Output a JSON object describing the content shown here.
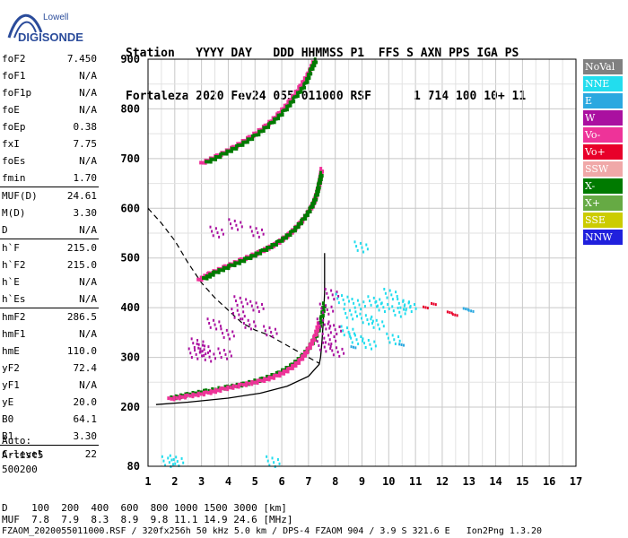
{
  "logo": {
    "line1": "Lowell",
    "line2": "DIGISONDE",
    "accent": "#2b4c9b"
  },
  "header": {
    "labels": [
      "Station",
      "YYYY DAY",
      "DDD HHMMSS P1",
      "FFS S AXN PPS IGA PS"
    ],
    "values": [
      "Fortaleza",
      "2020 Fev24",
      "055 011000 RSF",
      "1 714 100 10+ 11"
    ]
  },
  "params": [
    {
      "name": "foF2",
      "value": "7.450"
    },
    {
      "name": "foF1",
      "value": "N/A"
    },
    {
      "name": "foF1p",
      "value": "N/A"
    },
    {
      "name": "foE",
      "value": "N/A"
    },
    {
      "name": "foEp",
      "value": "0.38"
    },
    {
      "name": "fxI",
      "value": "7.75"
    },
    {
      "name": "foEs",
      "value": "N/A"
    },
    {
      "name": "fmin",
      "value": "1.70"
    },
    {
      "name": "MUF(D)",
      "value": "24.61"
    },
    {
      "name": "M(D)",
      "value": "3.30"
    },
    {
      "name": "D",
      "value": "N/A"
    },
    {
      "name": "h`F",
      "value": "215.0"
    },
    {
      "name": "h`F2",
      "value": "215.0"
    },
    {
      "name": "h`E",
      "value": "N/A"
    },
    {
      "name": "h`Es",
      "value": "N/A"
    },
    {
      "name": "hmF2",
      "value": "286.5"
    },
    {
      "name": "hmF1",
      "value": "N/A"
    },
    {
      "name": "hmE",
      "value": "110.0"
    },
    {
      "name": "yF2",
      "value": "72.4"
    },
    {
      "name": "yF1",
      "value": "N/A"
    },
    {
      "name": "yE",
      "value": "20.0"
    },
    {
      "name": "B0",
      "value": "64.1"
    },
    {
      "name": "B1",
      "value": "3.30"
    },
    {
      "name": "C-level",
      "value": "22"
    }
  ],
  "auto": {
    "label": "Auto:",
    "system": "Artist5",
    "version": "500200"
  },
  "legend": [
    {
      "label": "NoVal",
      "color": "#808080"
    },
    {
      "label": "NNE",
      "color": "#22ddee"
    },
    {
      "label": "E",
      "color": "#2aa8e0"
    },
    {
      "label": "W",
      "color": "#aa10a0"
    },
    {
      "label": "Vo-",
      "color": "#ee3399"
    },
    {
      "label": "Vo+",
      "color": "#e8002a"
    },
    {
      "label": "SSW",
      "color": "#f0a8a8"
    },
    {
      "label": "X-",
      "color": "#007a00"
    },
    {
      "label": "X+",
      "color": "#66aa44"
    },
    {
      "label": "SSE",
      "color": "#cccc00"
    },
    {
      "label": "NNW",
      "color": "#2020dd"
    }
  ],
  "muf_table": {
    "d_label": "D",
    "d_values": [
      "100",
      "200",
      "400",
      "600",
      "800",
      "1000",
      "1500",
      "3000"
    ],
    "d_unit": "[km]",
    "muf_label": "MUF",
    "muf_values": [
      "7.8",
      "7.9",
      "8.3",
      "8.9",
      "9.8",
      "11.1",
      "14.9",
      "24.6"
    ],
    "muf_unit": "[MHz]"
  },
  "footer": "FZAOM_2020055011000.RSF / 320fx256h 50 kHz 5.0 km / DPS-4 FZAOM 904 / 3.9 S 321.6 E   Ion2Png 1.3.20",
  "chart_data": {
    "type": "scatter",
    "xlim": [
      1,
      17
    ],
    "ylim": [
      80,
      900
    ],
    "x_ticks": [
      1,
      2,
      3,
      4,
      5,
      6,
      7,
      8,
      9,
      10,
      11,
      12,
      13,
      14,
      15,
      16,
      17
    ],
    "y_ticks": [
      80,
      200,
      300,
      400,
      500,
      600,
      700,
      800,
      900
    ],
    "grid": true,
    "legend_position": "right",
    "traces": [
      {
        "name": "X-",
        "color": "#007a00",
        "points": [
          [
            1.9,
            218
          ],
          [
            2.5,
            225
          ],
          [
            3.2,
            232
          ],
          [
            4.0,
            240
          ],
          [
            4.6,
            246
          ],
          [
            5.3,
            256
          ],
          [
            5.9,
            268
          ],
          [
            6.4,
            284
          ],
          [
            6.8,
            303
          ],
          [
            7.1,
            325
          ],
          [
            7.35,
            350
          ],
          [
            7.5,
            380
          ],
          [
            7.6,
            410
          ]
        ]
      },
      {
        "name": "Vo-",
        "color": "#ee3399",
        "points": [
          [
            1.8,
            216
          ],
          [
            2.5,
            222
          ],
          [
            3.2,
            228
          ],
          [
            3.8,
            236
          ],
          [
            4.5,
            244
          ],
          [
            5.2,
            252
          ],
          [
            5.8,
            262
          ],
          [
            6.3,
            276
          ],
          [
            6.7,
            294
          ],
          [
            7.0,
            316
          ],
          [
            7.25,
            342
          ],
          [
            7.4,
            370
          ]
        ]
      },
      {
        "name": "Vo-",
        "color": "#ee3399",
        "points": [
          [
            2.9,
            455
          ],
          [
            3.3,
            468
          ],
          [
            3.9,
            482
          ],
          [
            4.5,
            496
          ],
          [
            5.2,
            512
          ],
          [
            5.8,
            528
          ],
          [
            6.3,
            548
          ],
          [
            6.7,
            570
          ],
          [
            7.0,
            592
          ],
          [
            7.2,
            610
          ],
          [
            7.35,
            636
          ],
          [
            7.45,
            660
          ],
          [
            7.5,
            680
          ]
        ]
      },
      {
        "name": "X-",
        "color": "#007a00",
        "points": [
          [
            3.1,
            458
          ],
          [
            3.5,
            470
          ],
          [
            4.1,
            484
          ],
          [
            4.7,
            498
          ],
          [
            5.3,
            514
          ],
          [
            5.9,
            532
          ],
          [
            6.4,
            552
          ],
          [
            6.8,
            576
          ],
          [
            7.1,
            600
          ],
          [
            7.3,
            624
          ],
          [
            7.4,
            648
          ],
          [
            7.5,
            672
          ]
        ]
      },
      {
        "name": "Vo-",
        "color": "#ee3399",
        "points": [
          [
            3.0,
            690
          ],
          [
            3.6,
            705
          ],
          [
            4.2,
            722
          ],
          [
            4.8,
            742
          ],
          [
            5.4,
            765
          ],
          [
            5.9,
            790
          ],
          [
            6.3,
            815
          ],
          [
            6.7,
            845
          ],
          [
            7.0,
            870
          ],
          [
            7.2,
            895
          ]
        ]
      },
      {
        "name": "X-",
        "color": "#007a00",
        "points": [
          [
            3.2,
            692
          ],
          [
            3.8,
            708
          ],
          [
            4.4,
            725
          ],
          [
            5.0,
            745
          ],
          [
            5.6,
            770
          ],
          [
            6.1,
            795
          ],
          [
            6.5,
            822
          ],
          [
            6.9,
            850
          ],
          [
            7.1,
            878
          ],
          [
            7.3,
            900
          ]
        ]
      }
    ],
    "w_scatter": {
      "name": "W",
      "color": "#aa10a0",
      "points": [
        [
          2.8,
          300
        ],
        [
          3.1,
          310
        ],
        [
          3.3,
          295
        ],
        [
          2.9,
          320
        ],
        [
          3.5,
          360
        ],
        [
          4.0,
          340
        ],
        [
          4.4,
          380
        ],
        [
          4.8,
          360
        ],
        [
          5.1,
          395
        ],
        [
          5.6,
          345
        ],
        [
          3.9,
          300
        ],
        [
          4.5,
          405
        ],
        [
          7.6,
          360
        ],
        [
          7.8,
          330
        ],
        [
          8.0,
          350
        ],
        [
          7.7,
          390
        ],
        [
          7.9,
          420
        ],
        [
          8.1,
          305
        ],
        [
          7.6,
          315
        ],
        [
          3.6,
          545
        ],
        [
          4.3,
          560
        ],
        [
          5.1,
          545
        ]
      ]
    },
    "nne_scatter": {
      "name": "NNE",
      "color": "#22ddee",
      "points": [
        [
          8.3,
          410
        ],
        [
          8.6,
          380
        ],
        [
          8.9,
          400
        ],
        [
          9.2,
          370
        ],
        [
          9.5,
          405
        ],
        [
          9.8,
          395
        ],
        [
          10.1,
          420
        ],
        [
          10.4,
          385
        ],
        [
          10.6,
          400
        ],
        [
          8.8,
          330
        ],
        [
          9.3,
          320
        ],
        [
          10.2,
          330
        ],
        [
          9.0,
          515
        ],
        [
          8.5,
          345
        ],
        [
          9.6,
          360
        ],
        [
          10.8,
          395
        ],
        [
          1.8,
          82
        ],
        [
          2.1,
          84
        ],
        [
          5.7,
          82
        ]
      ]
    },
    "red_points": {
      "name": "Vo+",
      "color": "#e8002a",
      "points": [
        [
          12.3,
          385
        ],
        [
          12.5,
          380
        ],
        [
          11.4,
          395
        ],
        [
          11.7,
          402
        ]
      ]
    },
    "blue_points": {
      "name": "E",
      "color": "#2aa8e0",
      "points": [
        [
          12.9,
          392
        ],
        [
          13.1,
          388
        ],
        [
          8.7,
          315
        ],
        [
          10.5,
          320
        ]
      ]
    },
    "profile_solid": [
      [
        1.3,
        205
      ],
      [
        2.5,
        210
      ],
      [
        4.0,
        218
      ],
      [
        5.2,
        228
      ],
      [
        6.2,
        242
      ],
      [
        7.0,
        262
      ],
      [
        7.4,
        286
      ],
      [
        7.45,
        300
      ],
      [
        7.5,
        330
      ],
      [
        7.55,
        370
      ],
      [
        7.6,
        430
      ],
      [
        7.6,
        510
      ]
    ],
    "profile_dashed": [
      [
        1.0,
        600
      ],
      [
        1.5,
        570
      ],
      [
        2.0,
        535
      ],
      [
        2.5,
        490
      ],
      [
        3.0,
        450
      ],
      [
        3.5,
        420
      ],
      [
        4.0,
        395
      ],
      [
        4.5,
        370
      ],
      [
        5.0,
        355
      ],
      [
        5.5,
        345
      ],
      [
        6.0,
        330
      ],
      [
        6.5,
        315
      ],
      [
        7.0,
        300
      ],
      [
        7.4,
        288
      ]
    ]
  }
}
